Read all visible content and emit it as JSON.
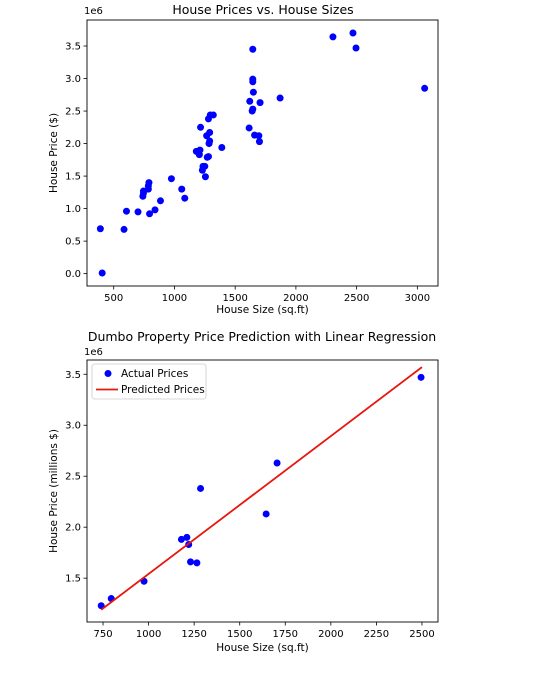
{
  "chart_data": [
    {
      "type": "scatter",
      "title": "House Prices vs. House Sizes",
      "xlabel": "House Size (sq.ft)",
      "ylabel": "House Price ($)",
      "y_offset_label": "1e6",
      "xlim": [
        280,
        3170
      ],
      "ylim": [
        -0.19,
        3.9
      ],
      "xticks": [
        500,
        1000,
        1500,
        2000,
        2500,
        3000
      ],
      "xtick_labels": [
        "500",
        "1000",
        "1500",
        "2000",
        "2500",
        "3000"
      ],
      "yticks": [
        0,
        0.5,
        1.0,
        1.5,
        2.0,
        2.5,
        3.0,
        3.5
      ],
      "ytick_labels": [
        "0.0",
        "0.5",
        "1.0",
        "1.5",
        "2.0",
        "2.5",
        "3.0",
        "3.5"
      ],
      "grid": false,
      "point_color": "#0000ff",
      "points": [
        {
          "x": 390,
          "y": 0.69
        },
        {
          "x": 405,
          "y": 0.01
        },
        {
          "x": 585,
          "y": 0.68
        },
        {
          "x": 605,
          "y": 0.96
        },
        {
          "x": 700,
          "y": 0.95
        },
        {
          "x": 740,
          "y": 1.19
        },
        {
          "x": 745,
          "y": 1.24
        },
        {
          "x": 745,
          "y": 1.27
        },
        {
          "x": 785,
          "y": 1.3
        },
        {
          "x": 785,
          "y": 1.35
        },
        {
          "x": 790,
          "y": 1.4
        },
        {
          "x": 795,
          "y": 0.92
        },
        {
          "x": 840,
          "y": 0.98
        },
        {
          "x": 885,
          "y": 1.12
        },
        {
          "x": 975,
          "y": 1.46
        },
        {
          "x": 1060,
          "y": 1.3
        },
        {
          "x": 1085,
          "y": 1.16
        },
        {
          "x": 1180,
          "y": 1.88
        },
        {
          "x": 1205,
          "y": 1.83
        },
        {
          "x": 1210,
          "y": 1.9
        },
        {
          "x": 1215,
          "y": 2.25
        },
        {
          "x": 1230,
          "y": 1.59
        },
        {
          "x": 1235,
          "y": 1.65
        },
        {
          "x": 1250,
          "y": 1.65
        },
        {
          "x": 1255,
          "y": 1.49
        },
        {
          "x": 1265,
          "y": 2.12
        },
        {
          "x": 1270,
          "y": 1.79
        },
        {
          "x": 1280,
          "y": 1.8
        },
        {
          "x": 1280,
          "y": 2.38
        },
        {
          "x": 1285,
          "y": 2.0
        },
        {
          "x": 1290,
          "y": 2.04
        },
        {
          "x": 1290,
          "y": 2.17
        },
        {
          "x": 1295,
          "y": 2.44
        },
        {
          "x": 1320,
          "y": 2.44
        },
        {
          "x": 1390,
          "y": 1.94
        },
        {
          "x": 1615,
          "y": 2.24
        },
        {
          "x": 1620,
          "y": 2.65
        },
        {
          "x": 1640,
          "y": 2.5
        },
        {
          "x": 1645,
          "y": 2.53
        },
        {
          "x": 1645,
          "y": 2.95
        },
        {
          "x": 1645,
          "y": 2.99
        },
        {
          "x": 1645,
          "y": 3.45
        },
        {
          "x": 1650,
          "y": 2.79
        },
        {
          "x": 1660,
          "y": 2.13
        },
        {
          "x": 1695,
          "y": 2.12
        },
        {
          "x": 1700,
          "y": 2.03
        },
        {
          "x": 1705,
          "y": 2.63
        },
        {
          "x": 1870,
          "y": 2.7
        },
        {
          "x": 2305,
          "y": 3.64
        },
        {
          "x": 2470,
          "y": 3.7
        },
        {
          "x": 2495,
          "y": 3.47
        },
        {
          "x": 3060,
          "y": 2.85
        }
      ]
    },
    {
      "type": "scatter",
      "title": "Dumbo Property Price Prediction with Linear Regression",
      "xlabel": "House Size (sq.ft)",
      "ylabel": "House Price (millions $)",
      "y_offset_label": "1e6",
      "xlim": [
        662,
        2588
      ],
      "ylim": [
        1.07,
        3.64
      ],
      "xticks": [
        750,
        1000,
        1250,
        1500,
        1750,
        2000,
        2250,
        2500
      ],
      "xtick_labels": [
        "750",
        "1000",
        "1250",
        "1500",
        "1750",
        "2000",
        "2250",
        "2500"
      ],
      "yticks": [
        1.5,
        2.0,
        2.5,
        3.0,
        3.5
      ],
      "ytick_labels": [
        "1.5",
        "2.0",
        "2.5",
        "3.0",
        "3.5"
      ],
      "grid": false,
      "legend_position": "top-left",
      "series": [
        {
          "name": "Actual Prices",
          "kind": "scatter",
          "color": "#0000ff",
          "points": [
            {
              "x": 740,
              "y": 1.23
            },
            {
              "x": 795,
              "y": 1.3
            },
            {
              "x": 975,
              "y": 1.47
            },
            {
              "x": 1180,
              "y": 1.88
            },
            {
              "x": 1210,
              "y": 1.9
            },
            {
              "x": 1220,
              "y": 1.83
            },
            {
              "x": 1230,
              "y": 1.66
            },
            {
              "x": 1265,
              "y": 1.65
            },
            {
              "x": 1285,
              "y": 2.38
            },
            {
              "x": 1645,
              "y": 2.13
            },
            {
              "x": 1705,
              "y": 2.63
            },
            {
              "x": 2495,
              "y": 3.47
            }
          ]
        },
        {
          "name": "Predicted Prices",
          "kind": "line",
          "color": "#e8160c",
          "points": [
            {
              "x": 740,
              "y": 1.19
            },
            {
              "x": 2500,
              "y": 3.57
            }
          ]
        }
      ]
    }
  ]
}
